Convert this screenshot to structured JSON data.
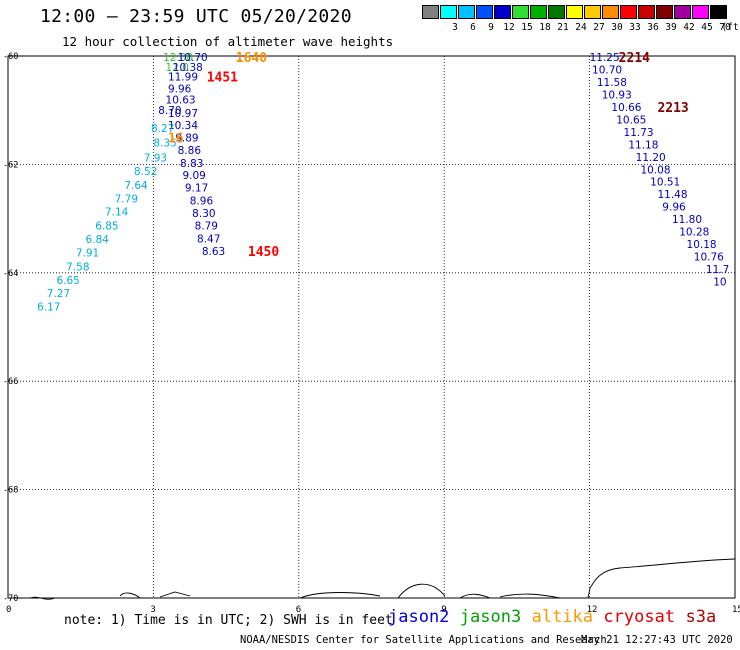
{
  "header": {
    "title": "12:00 — 23:59 UTC 05/20/2020",
    "subtitle": "12 hour collection of altimeter wave heights"
  },
  "color_scale": {
    "unit": "(ft)",
    "bins": [
      {
        "label": "",
        "color": "#808080"
      },
      {
        "label": "3",
        "color": "#00ffff"
      },
      {
        "label": "6",
        "color": "#00c0ff"
      },
      {
        "label": "9",
        "color": "#0050ff"
      },
      {
        "label": "12",
        "color": "#0000c8"
      },
      {
        "label": "15",
        "color": "#30e030"
      },
      {
        "label": "18",
        "color": "#00b000"
      },
      {
        "label": "21",
        "color": "#007800"
      },
      {
        "label": "24",
        "color": "#ffff00"
      },
      {
        "label": "27",
        "color": "#ffc800"
      },
      {
        "label": "30",
        "color": "#ff8c00"
      },
      {
        "label": "33",
        "color": "#ff0000"
      },
      {
        "label": "36",
        "color": "#c80000"
      },
      {
        "label": "39",
        "color": "#800000"
      },
      {
        "label": "42",
        "color": "#a000a0"
      },
      {
        "label": "45",
        "color": "#ff00ff"
      },
      {
        "label": "70",
        "color": "#000000"
      }
    ]
  },
  "chart_data": {
    "type": "scatter",
    "x_axis": {
      "ticks": [
        "0",
        "3",
        "6",
        "9",
        "12",
        "15"
      ],
      "range": [
        0,
        15
      ]
    },
    "y_axis": {
      "ticks": [
        "-60",
        "-62",
        "-64",
        "-66",
        "-68",
        "-70"
      ],
      "range": [
        -60,
        -70
      ]
    },
    "grid": "dotted",
    "tracks": [
      {
        "id": "jason3-descending",
        "color": "#30c030",
        "points": [
          {
            "lon": 3.2,
            "lat": -60.02,
            "text": "12.00"
          },
          {
            "lon": 3.25,
            "lat": -60.2,
            "text": "12.0"
          }
        ]
      },
      {
        "id": "altika-1640",
        "color": "#00aee0",
        "points": [
          {
            "lon": 3.0,
            "lat": -61.6,
            "text": "8.35"
          },
          {
            "lon": 2.8,
            "lat": -61.87,
            "text": "7.93"
          },
          {
            "lon": 2.6,
            "lat": -62.12,
            "text": "8.52"
          },
          {
            "lon": 2.4,
            "lat": -62.38,
            "text": "7.64"
          },
          {
            "lon": 2.2,
            "lat": -62.63,
            "text": "7.79"
          },
          {
            "lon": 2.0,
            "lat": -62.87,
            "text": "7.14"
          },
          {
            "lon": 1.8,
            "lat": -63.13,
            "text": "6.85"
          },
          {
            "lon": 1.6,
            "lat": -63.38,
            "text": "6.84"
          },
          {
            "lon": 1.4,
            "lat": -63.63,
            "text": "7.91"
          },
          {
            "lon": 1.2,
            "lat": -63.88,
            "text": "7.58"
          },
          {
            "lon": 1.0,
            "lat": -64.13,
            "text": "6.65"
          },
          {
            "lon": 0.8,
            "lat": -64.37,
            "text": "7.27"
          },
          {
            "lon": 0.6,
            "lat": -64.62,
            "text": "6.17"
          }
        ]
      },
      {
        "id": "jason2-1450",
        "color": "#0000c0",
        "points": [
          {
            "lon": 3.5,
            "lat": -60.02,
            "text": "10.70"
          },
          {
            "lon": 3.4,
            "lat": -60.2,
            "text": "10.38"
          },
          {
            "lon": 3.3,
            "lat": -60.38,
            "text": "11.99"
          },
          {
            "lon": 3.3,
            "lat": -60.6,
            "text": "9.96"
          },
          {
            "lon": 3.25,
            "lat": -60.8,
            "text": "10.63"
          },
          {
            "lon": 3.1,
            "lat": -61.0,
            "text": "8.70"
          },
          {
            "lon": 3.3,
            "lat": -61.05,
            "text": "10.97"
          },
          {
            "lon": 3.3,
            "lat": -61.27,
            "text": "10.34"
          },
          {
            "lon": 3.45,
            "lat": -61.5,
            "text": "9.89"
          },
          {
            "lon": 3.5,
            "lat": -61.73,
            "text": "8.86"
          },
          {
            "lon": 3.55,
            "lat": -61.97,
            "text": "8.83"
          },
          {
            "lon": 3.6,
            "lat": -62.2,
            "text": "9.09"
          },
          {
            "lon": 3.65,
            "lat": -62.43,
            "text": "9.17"
          },
          {
            "lon": 3.75,
            "lat": -62.67,
            "text": "8.96"
          },
          {
            "lon": 3.8,
            "lat": -62.9,
            "text": "8.30"
          },
          {
            "lon": 3.85,
            "lat": -63.13,
            "text": "8.79"
          },
          {
            "lon": 3.9,
            "lat": -63.37,
            "text": "8.47"
          },
          {
            "lon": 4.0,
            "lat": -63.6,
            "text": "8.63"
          }
        ]
      },
      {
        "id": "altika-near",
        "color": "#00aee0",
        "points": [
          {
            "lon": 2.95,
            "lat": -61.33,
            "text": "8.27"
          }
        ]
      },
      {
        "id": "s3a-2214",
        "color": "#0000c0",
        "points": [
          {
            "lon": 12.0,
            "lat": -60.02,
            "text": "11.25"
          },
          {
            "lon": 12.05,
            "lat": -60.25,
            "text": "10.70"
          },
          {
            "lon": 12.15,
            "lat": -60.48,
            "text": "11.58"
          },
          {
            "lon": 12.25,
            "lat": -60.71,
            "text": "10.93"
          },
          {
            "lon": 12.45,
            "lat": -60.94,
            "text": "10.66"
          },
          {
            "lon": 12.55,
            "lat": -61.17,
            "text": "10.65"
          },
          {
            "lon": 12.7,
            "lat": -61.4,
            "text": "11.73"
          },
          {
            "lon": 12.8,
            "lat": -61.63,
            "text": "11.18"
          },
          {
            "lon": 12.95,
            "lat": -61.86,
            "text": "11.20"
          },
          {
            "lon": 13.05,
            "lat": -62.09,
            "text": "10.08"
          },
          {
            "lon": 13.25,
            "lat": -62.32,
            "text": "10.51"
          },
          {
            "lon": 13.4,
            "lat": -62.55,
            "text": "11.48"
          },
          {
            "lon": 13.5,
            "lat": -62.78,
            "text": "9.96"
          },
          {
            "lon": 13.7,
            "lat": -63.01,
            "text": "11.80"
          },
          {
            "lon": 13.85,
            "lat": -63.24,
            "text": "10.28"
          },
          {
            "lon": 14.0,
            "lat": -63.47,
            "text": "10.18"
          },
          {
            "lon": 14.15,
            "lat": -63.7,
            "text": "10.76"
          },
          {
            "lon": 14.4,
            "lat": -63.93,
            "text": "11.7"
          },
          {
            "lon": 14.55,
            "lat": -64.16,
            "text": "10"
          }
        ]
      }
    ],
    "pass_labels": [
      {
        "text": "1640",
        "color": "#ff8c00",
        "lon": 4.7,
        "lat": -60.02
      },
      {
        "text": "1451",
        "color": "#ff0000",
        "lon": 4.1,
        "lat": -60.38
      },
      {
        "text": "16",
        "color": "#ff8c00",
        "lon": 3.3,
        "lat": -61.5
      },
      {
        "text": "1450",
        "color": "#ff0000",
        "lon": 4.95,
        "lat": -63.6
      },
      {
        "text": "2214",
        "color": "#800000",
        "lon": 12.6,
        "lat": -60.02
      },
      {
        "text": "2213",
        "color": "#800000",
        "lon": 13.4,
        "lat": -60.94
      }
    ]
  },
  "footer": {
    "note": "note: 1) Time is in UTC; 2) SWH is in feet",
    "legend": [
      {
        "name": "jason2",
        "color": "#0000e0"
      },
      {
        "name": "jason3",
        "color": "#00a000"
      },
      {
        "name": "altika",
        "color": "#ff9900"
      },
      {
        "name": "cryosat",
        "color": "#e00000"
      },
      {
        "name": "s3a",
        "color": "#b00000"
      }
    ],
    "credit": "NOAA/NESDIS Center for Satellite Applications and Research",
    "timestamp": "May 21 12:27:43 UTC 2020"
  }
}
